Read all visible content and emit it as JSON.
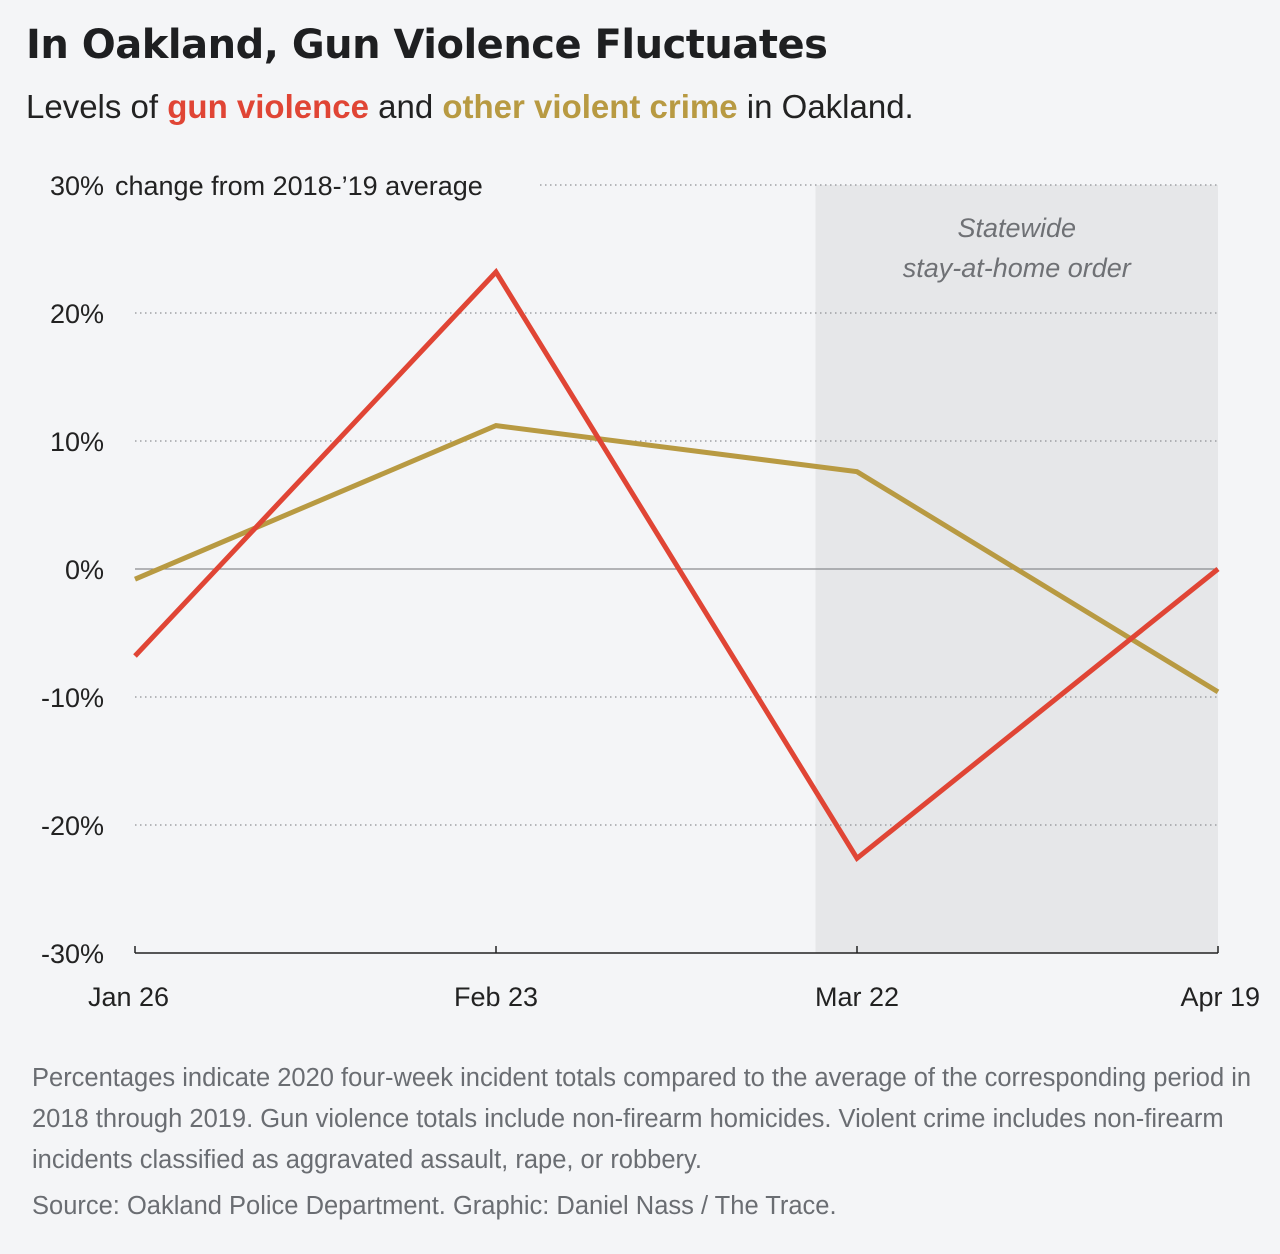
{
  "header": {
    "title": "In Oakland, Gun Violence Fluctuates",
    "subtitle_prefix": "Levels of ",
    "subtitle_gun": "gun violence",
    "subtitle_mid": " and ",
    "subtitle_other": "other violent crime",
    "subtitle_suffix": " in Oakland."
  },
  "colors": {
    "gun": "#e04535",
    "other": "#b89a42",
    "shade": "#e6e7e9",
    "background": "#f4f5f7"
  },
  "chart_data": {
    "type": "line",
    "ylabel": "change from 2018-’19 average",
    "ylim": [
      -30,
      30
    ],
    "yticks": [
      30,
      20,
      10,
      0,
      -10,
      -20,
      -30
    ],
    "ytick_labels": [
      "30%",
      "20%",
      "10%",
      "0%",
      "-10%",
      "-20%",
      "-30%"
    ],
    "categories": [
      "Jan 26",
      "Feb 23",
      "Mar 22",
      "Apr 19"
    ],
    "grid": true,
    "series": [
      {
        "key": "gun",
        "values": [
          -6.8,
          23.2,
          -22.6,
          0
        ]
      },
      {
        "key": "other",
        "values": [
          -0.8,
          11.2,
          7.6,
          -9.6
        ]
      }
    ],
    "annotation": {
      "lines": [
        "Statewide",
        "stay-at-home order"
      ],
      "x_start": "Mar 22",
      "x_end": "Apr 19"
    }
  },
  "footer": {
    "notes": "Percentages indicate 2020 four-week incident totals compared to the average of the corresponding period in 2018 through 2019. Gun violence totals include non-firearm homicides. Violent crime includes non-firearm incidents classified as aggravated assault, rape, or robbery.",
    "source": "Source: Oakland Police Department. Graphic: Daniel Nass / The Trace."
  }
}
